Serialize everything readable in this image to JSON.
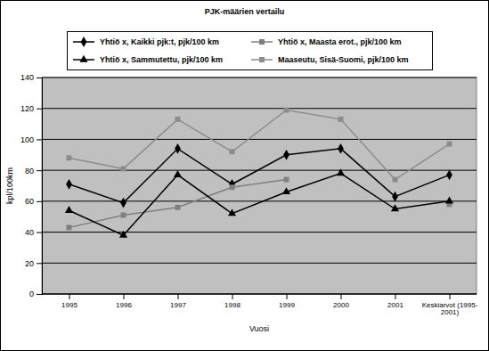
{
  "chart_data": {
    "type": "line",
    "title": "PJK-määrien vertailu",
    "x_label": "Vuosi",
    "y_label": "kpl/100km",
    "categories": [
      "1995",
      "1996",
      "1997",
      "1998",
      "1999",
      "2000",
      "2001",
      "Keskiarvot (1995-2001)"
    ],
    "series": [
      {
        "name": "Yhtiö x, Kaikki pjk:t, pjk/100 km",
        "color": "#000000",
        "marker": "diamond",
        "line_style": "solid",
        "values": [
          71,
          59,
          94,
          71,
          90,
          94,
          63,
          77
        ]
      },
      {
        "name": "Yhtiö x, Maasta erot., pjk/100 km",
        "color": "#808080",
        "marker": "square",
        "line_style": "solid",
        "values": [
          43,
          51,
          56,
          69,
          74,
          null,
          null,
          58
        ]
      },
      {
        "name": "Yhtiö x, Sammutettu, pjk/100 km",
        "color": "#000000",
        "marker": "triangle",
        "line_style": "solid",
        "values": [
          54,
          38,
          77,
          52,
          66,
          78,
          55,
          60
        ]
      },
      {
        "name": "Maaseutu, Sisä-Suomi, pjk/100 km",
        "color": "#8c8c8c",
        "marker": "square",
        "line_style": "solid",
        "values": [
          88,
          81,
          113,
          92,
          119,
          113,
          74,
          97
        ]
      }
    ],
    "ylim": [
      0,
      140
    ],
    "yticks": [
      0,
      20,
      40,
      60,
      80,
      100,
      120,
      140
    ],
    "grid": true,
    "legend": "top"
  }
}
